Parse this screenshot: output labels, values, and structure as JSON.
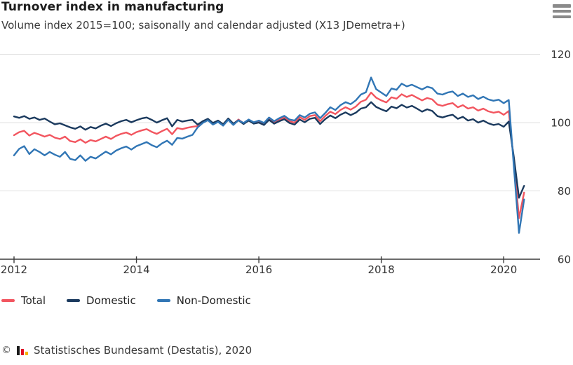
{
  "header": {
    "title": "Turnover index in manufacturing",
    "subtitle": "Volume index 2015=100; saisonally and calendar adjusted (X13 JDemetra+)",
    "menu_icon": "hamburger-menu-icon"
  },
  "chart_data": {
    "type": "line",
    "title": "Turnover index in manufacturing",
    "subtitle": "Volume index 2015=100; saisonally and calendar adjusted (X13 JDemetra+)",
    "frequency": "monthly",
    "x_start": "2012-01",
    "x_end": "2020-05",
    "x_tick_labels": [
      "2012",
      "2014",
      "2016",
      "2018",
      "2020"
    ],
    "y_ticks": [
      120,
      100,
      80,
      60
    ],
    "ylim": [
      60,
      122
    ],
    "grid": "horizontal",
    "legend_position": "bottom-left",
    "colors": {
      "gridline": "#e1e1e1",
      "axis": "#3a3a3a",
      "tick_label": "#333333"
    },
    "series": [
      {
        "name": "Total",
        "color": "#f2555f",
        "values": [
          96.3,
          97.2,
          97.6,
          96.2,
          97.0,
          96.5,
          95.9,
          96.4,
          95.6,
          95.2,
          95.9,
          94.6,
          94.3,
          95.1,
          94.1,
          94.9,
          94.5,
          95.2,
          95.9,
          95.2,
          96.1,
          96.7,
          97.1,
          96.4,
          97.2,
          97.7,
          98.1,
          97.3,
          96.7,
          97.5,
          98.2,
          96.6,
          98.4,
          98.1,
          98.5,
          98.8,
          99.0,
          100.2,
          100.9,
          99.6,
          100.4,
          99.3,
          101.0,
          99.5,
          100.9,
          99.8,
          100.8,
          99.9,
          100.3,
          99.6,
          101.2,
          100.1,
          100.9,
          101.5,
          100.4,
          100.0,
          101.6,
          100.8,
          101.9,
          102.2,
          100.4,
          101.9,
          103.2,
          102.5,
          103.7,
          104.5,
          103.8,
          104.7,
          106.1,
          106.7,
          108.8,
          107.3,
          106.5,
          105.9,
          107.4,
          107.0,
          108.3,
          107.5,
          108.1,
          107.3,
          106.5,
          107.2,
          106.8,
          105.3,
          104.9,
          105.4,
          105.7,
          104.5,
          105.1,
          104.1,
          104.5,
          103.5,
          104.1,
          103.3,
          102.9,
          103.2,
          102.3,
          103.4,
          88.5,
          72.0,
          79.5
        ]
      },
      {
        "name": "Domestic",
        "color": "#1b3a5e",
        "values": [
          101.8,
          101.4,
          101.9,
          101.1,
          101.5,
          100.8,
          101.2,
          100.3,
          99.5,
          99.8,
          99.2,
          98.6,
          98.2,
          98.9,
          97.9,
          98.7,
          98.3,
          99.1,
          99.7,
          99.0,
          99.8,
          100.4,
          100.8,
          100.1,
          100.7,
          101.2,
          101.5,
          100.8,
          100.0,
          100.7,
          101.3,
          98.9,
          100.8,
          100.3,
          100.6,
          100.8,
          99.4,
          100.4,
          101.1,
          99.9,
          100.6,
          99.5,
          101.2,
          99.7,
          100.7,
          99.6,
          100.6,
          99.7,
          100.0,
          99.3,
          100.8,
          99.7,
          100.4,
          101.0,
          99.9,
          99.4,
          100.9,
          100.1,
          101.1,
          101.4,
          99.6,
          101.0,
          102.1,
          101.3,
          102.3,
          103.0,
          102.2,
          102.9,
          104.1,
          104.5,
          106.0,
          104.6,
          103.9,
          103.3,
          104.7,
          104.2,
          105.2,
          104.4,
          104.9,
          104.1,
          103.2,
          103.9,
          103.4,
          101.9,
          101.5,
          102.0,
          102.3,
          101.1,
          101.7,
          100.6,
          101.0,
          100.0,
          100.6,
          99.8,
          99.3,
          99.6,
          98.8,
          100.3,
          89.8,
          78.0,
          81.5
        ]
      },
      {
        "name": "Non-Domestic",
        "color": "#3176b5",
        "values": [
          90.4,
          92.3,
          93.1,
          90.8,
          92.2,
          91.4,
          90.4,
          91.4,
          90.6,
          90.0,
          91.4,
          89.4,
          89.0,
          90.4,
          88.8,
          90.0,
          89.5,
          90.5,
          91.5,
          90.7,
          91.8,
          92.5,
          93.0,
          92.1,
          93.1,
          93.7,
          94.3,
          93.4,
          92.8,
          93.9,
          94.7,
          93.5,
          95.5,
          95.3,
          95.9,
          96.4,
          98.6,
          99.9,
          100.7,
          99.4,
          100.2,
          99.1,
          100.8,
          99.3,
          100.7,
          99.9,
          100.9,
          100.1,
          100.6,
          99.9,
          101.5,
          100.4,
          101.3,
          102.0,
          100.9,
          100.6,
          102.2,
          101.5,
          102.6,
          103.0,
          101.3,
          102.8,
          104.5,
          103.7,
          105.1,
          106.0,
          105.4,
          106.5,
          108.2,
          108.9,
          113.2,
          109.8,
          108.8,
          107.8,
          110.0,
          109.6,
          111.4,
          110.6,
          111.1,
          110.4,
          109.7,
          110.5,
          110.1,
          108.5,
          108.2,
          108.8,
          109.1,
          107.8,
          108.5,
          107.5,
          108.0,
          106.9,
          107.6,
          106.8,
          106.4,
          106.7,
          105.7,
          106.6,
          87.0,
          67.7,
          77.5
        ]
      }
    ]
  },
  "footer": {
    "copyright": "©",
    "logo_icon": "destatis-bar-chart-icon",
    "text": "Statistisches Bundesamt (Destatis), 2020"
  }
}
